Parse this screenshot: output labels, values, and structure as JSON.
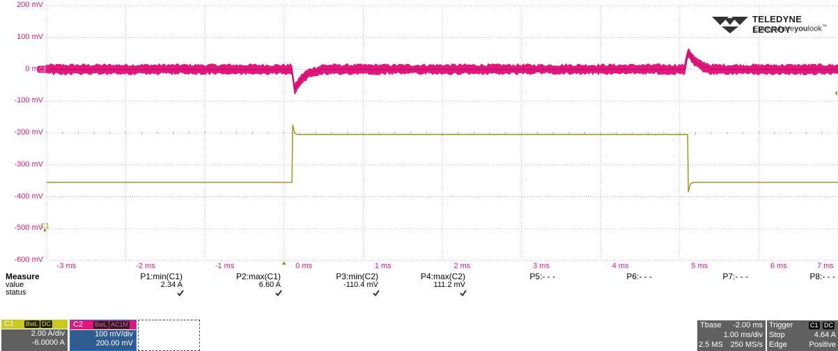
{
  "scope": {
    "y_ticks": [
      "200 mV",
      "100 mV",
      "0 mV",
      "-100 mV",
      "-200 mV",
      "-300 mV",
      "-400 mV",
      "-500 mV",
      "-600 mV"
    ],
    "x_ticks": [
      "-3 ms",
      "-2 ms",
      "-1 ms",
      "0 ms",
      "1 ms",
      "2 ms",
      "3 ms",
      "4 ms",
      "5 ms",
      "6 ms",
      "7 ms"
    ],
    "ch2_marker": "C2",
    "ch1_marker": "C1",
    "colors": {
      "c1": "#9a9a1a",
      "c2": "#e2177e",
      "grid": "#b9b9b9",
      "axis_text": "#e2177e"
    }
  },
  "logo": {
    "brand": "TELEDYNE LECROY",
    "tag_pre": "Everywhere",
    "tag_bold": "you",
    "tag_post": "look",
    "tm": "™"
  },
  "measure": {
    "title": "Measure",
    "row_labels": [
      "value",
      "status"
    ],
    "params": [
      {
        "name": "P1:min(C1)",
        "value": "2.34 A",
        "status": "ok"
      },
      {
        "name": "P2:max(C1)",
        "value": "6.60 A",
        "status": "ok"
      },
      {
        "name": "P3:min(C2)",
        "value": "-110.4 mV",
        "status": "ok"
      },
      {
        "name": "P4:max(C2)",
        "value": "111.2 mV",
        "status": "ok"
      },
      {
        "name": "P5:- - -",
        "value": "",
        "status": ""
      },
      {
        "name": "P6:- - -",
        "value": "",
        "status": ""
      },
      {
        "name": "P7:- - -",
        "value": "",
        "status": ""
      },
      {
        "name": "P8:- - -",
        "value": "",
        "status": ""
      }
    ]
  },
  "channels": {
    "c1": {
      "name": "C1",
      "badges": [
        "BwL",
        "DC"
      ],
      "scale": "2.00 A/div",
      "offset": "-6.0000 A"
    },
    "c2": {
      "name": "C2",
      "badges": [
        "BwL",
        "AC1M"
      ],
      "scale": "100 mV/div",
      "offset": "200.00 mV"
    }
  },
  "timebase": {
    "label": "Tbase",
    "delay": "-2.00 ms",
    "scale": "1.00 ms/div",
    "samples": "2.5 MS",
    "rate": "250 MS/s"
  },
  "trigger": {
    "label": "Trigger",
    "badges": [
      "C1",
      "DC"
    ],
    "mode": "Stop",
    "level": "4.64 A",
    "type": "Edge",
    "slope": "Positive"
  }
}
